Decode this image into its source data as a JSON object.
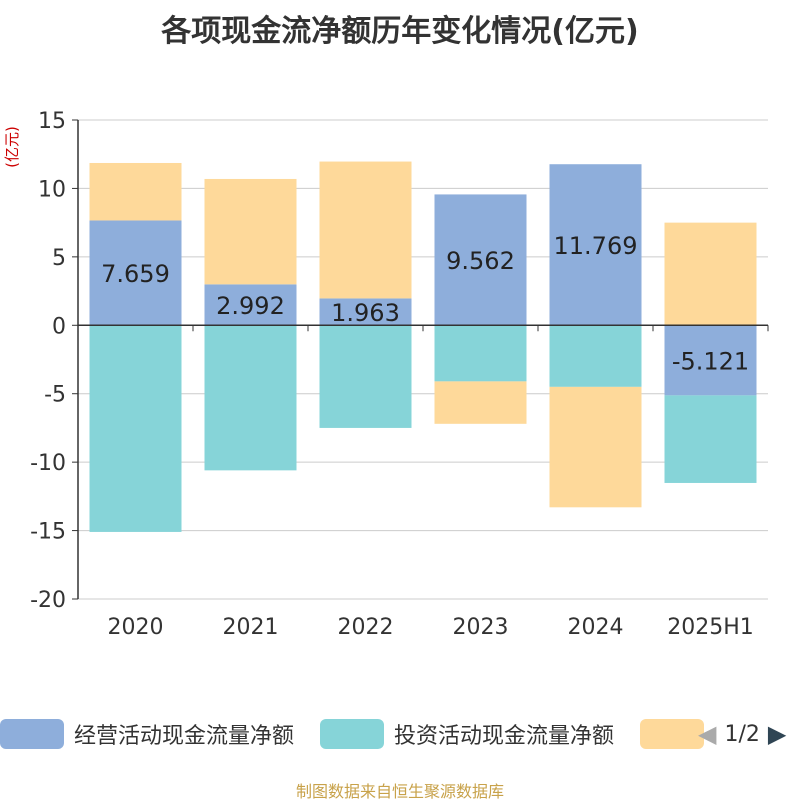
{
  "title": "各项现金流净额历年变化情况(亿元)",
  "source": "制图数据来自恒生聚源数据库",
  "chart_data": {
    "type": "bar",
    "stacked": true,
    "ylabel": "(亿元)",
    "ylim": [
      -20,
      15
    ],
    "yticks": [
      15,
      10,
      5,
      0,
      -5,
      -10,
      -15,
      -20
    ],
    "grid": true,
    "categories": [
      "2020",
      "2021",
      "2022",
      "2023",
      "2024",
      "2025H1"
    ],
    "series": [
      {
        "name": "经营活动现金流量净额",
        "color": "#8eaedb",
        "values": [
          7.659,
          2.992,
          1.963,
          9.562,
          11.769,
          -5.121
        ],
        "labels": [
          "7.659",
          "2.992",
          "1.963",
          "9.562",
          "11.769",
          "-5.121"
        ]
      },
      {
        "name": "投资活动现金流量净额",
        "color": "#86d4d8",
        "values": [
          -15.1,
          -10.6,
          -7.5,
          -4.1,
          -4.5,
          -6.4
        ]
      },
      {
        "name": "",
        "color": "#fed99a",
        "values": [
          4.2,
          7.7,
          10.0,
          -3.1,
          -8.8,
          7.5
        ]
      }
    ],
    "legend": {
      "position": "bottom",
      "page": "1/2"
    }
  }
}
